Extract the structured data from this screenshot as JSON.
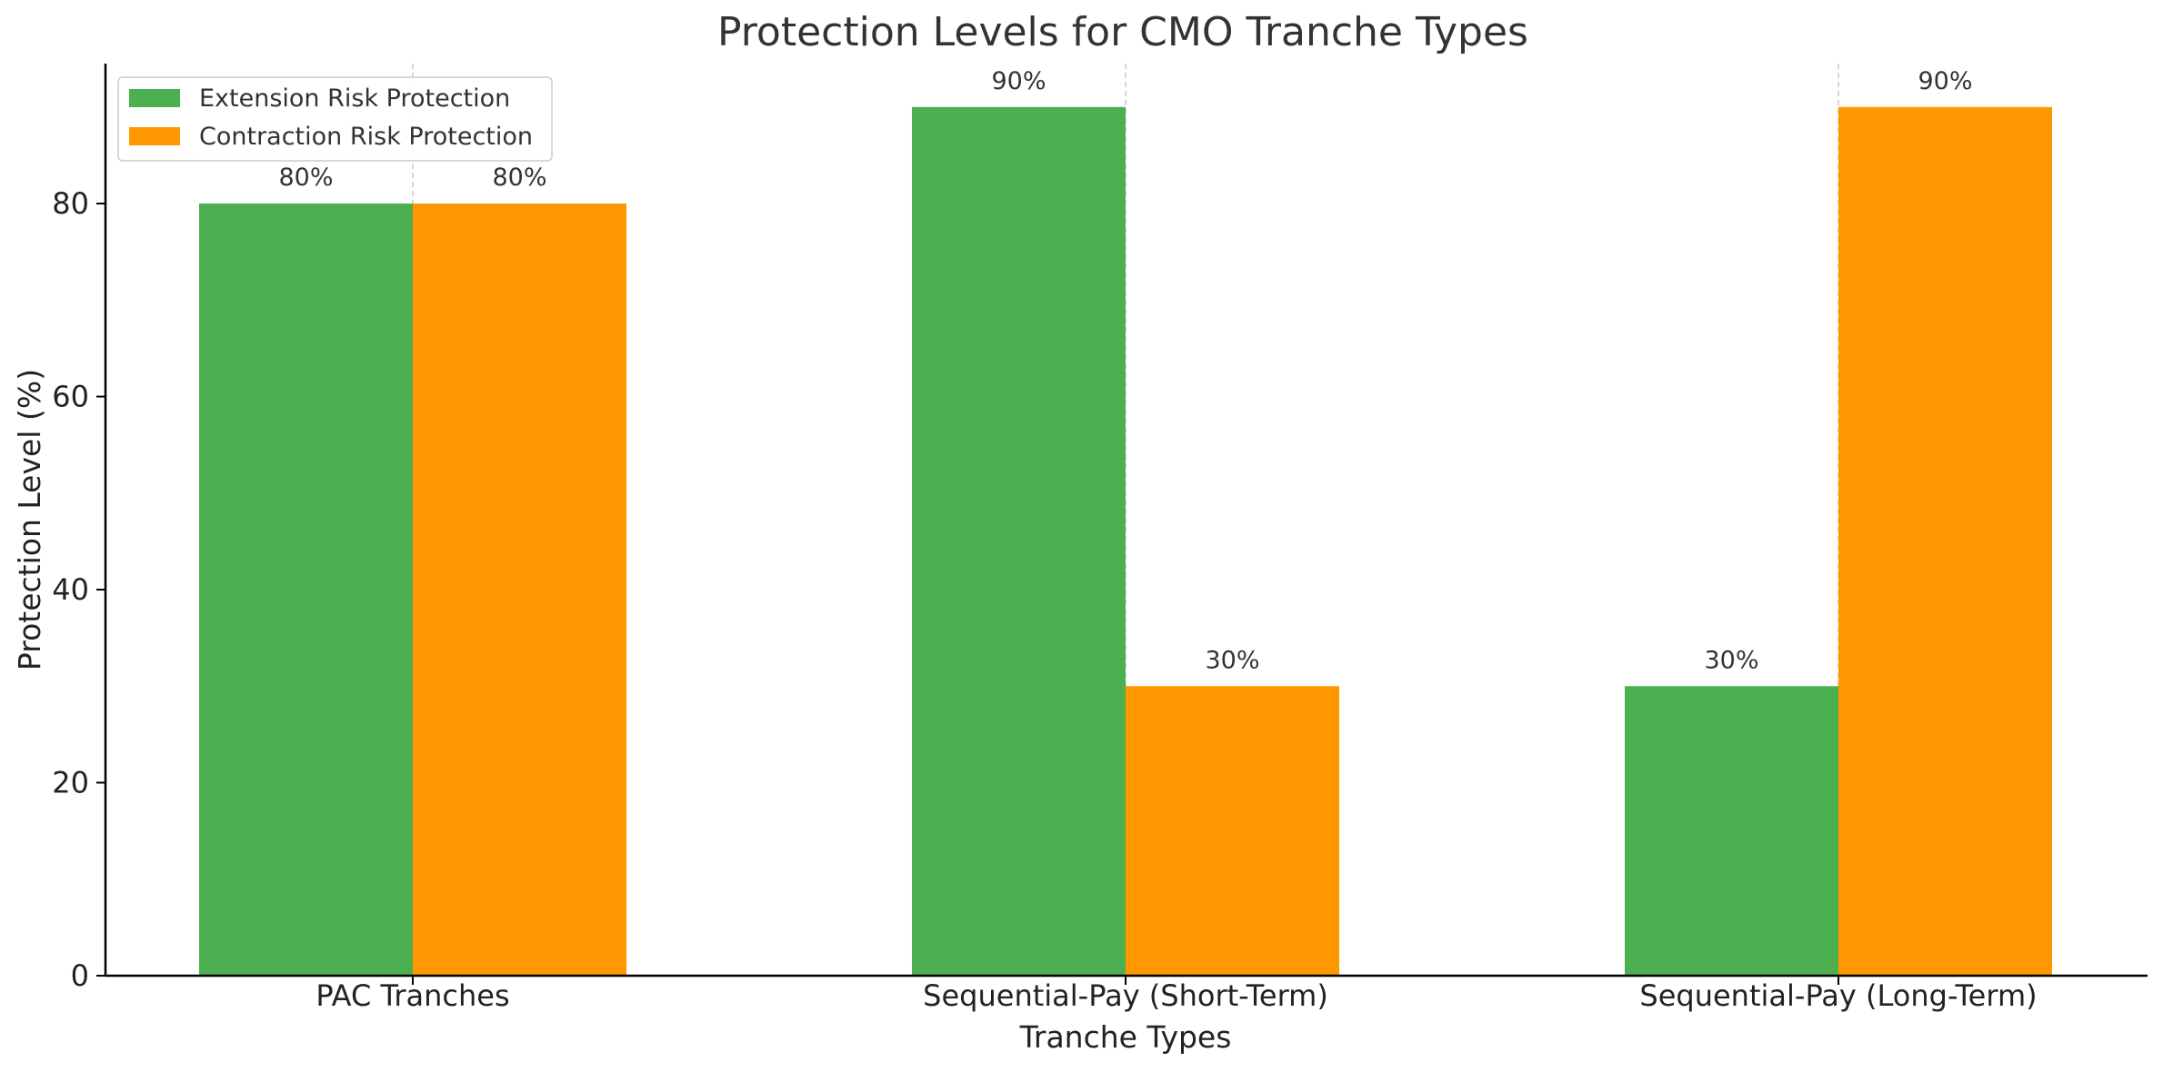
{
  "chart_data": {
    "type": "bar",
    "title": "Protection Levels for CMO Tranche Types",
    "xlabel": "Tranche Types",
    "ylabel": "Protection Level (%)",
    "categories": [
      "PAC Tranches",
      "Sequential-Pay (Short-Term)",
      "Sequential-Pay (Long-Term)"
    ],
    "series": [
      {
        "name": "Extension Risk Protection",
        "values": [
          80,
          90,
          30
        ],
        "labels": [
          "80%",
          "90%",
          "30%"
        ],
        "color": "#4caf50"
      },
      {
        "name": "Contraction Risk Protection",
        "values": [
          80,
          30,
          90
        ],
        "labels": [
          "80%",
          "30%",
          "90%"
        ],
        "color": "#ff9800"
      }
    ],
    "yticks": [
      0,
      20,
      40,
      60,
      80
    ],
    "ylim": [
      0,
      94.5
    ],
    "grid": "vertical dashed at category centers",
    "legend": "top-left"
  }
}
